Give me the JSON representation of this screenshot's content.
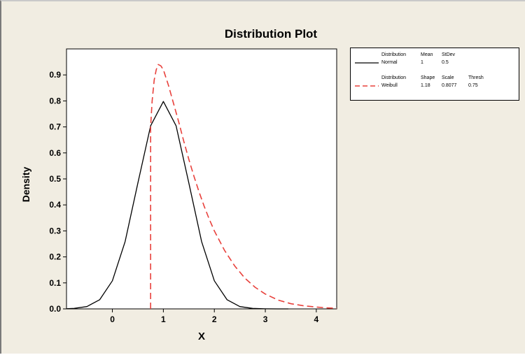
{
  "chart_data": {
    "type": "line",
    "title": "Distribution Plot",
    "xlabel": "X",
    "ylabel": "Density",
    "xlim": [
      -0.9,
      4.4
    ],
    "ylim": [
      0,
      1.0
    ],
    "x_ticks": [
      0,
      1,
      2,
      3,
      4
    ],
    "x_tick_labels": [
      "0",
      "1",
      "2",
      "3",
      "4"
    ],
    "y_ticks": [
      0.0,
      0.1,
      0.2,
      0.3,
      0.4,
      0.5,
      0.6,
      0.7,
      0.8,
      0.9
    ],
    "y_tick_labels": [
      "0.0",
      "0.1",
      "0.2",
      "0.3",
      "0.4",
      "0.5",
      "0.6",
      "0.7",
      "0.8",
      "0.9"
    ],
    "grid": false,
    "legend_position": "top-right, outside plot",
    "series": [
      {
        "name": "Normal",
        "color": "#000000",
        "line_style": "solid",
        "x": [
          -0.9,
          -0.75,
          -0.5,
          -0.25,
          0,
          0.25,
          0.5,
          0.75,
          1,
          1.25,
          1.5,
          1.75,
          2,
          2.25,
          2.5,
          2.75,
          3,
          3.25,
          3.45
        ],
        "y": [
          0.0006,
          0.0019,
          0.0089,
          0.035,
          0.108,
          0.259,
          0.484,
          0.704,
          0.798,
          0.704,
          0.484,
          0.259,
          0.108,
          0.035,
          0.0089,
          0.0018,
          0.0003,
          0.0,
          0.0
        ]
      },
      {
        "name": "Weibull",
        "color": "#e8413c",
        "line_style": "dashed",
        "x": [
          0.75,
          0.75,
          0.78,
          0.82,
          0.86,
          0.9,
          0.95,
          1.0,
          1.1,
          1.2,
          1.3,
          1.4,
          1.5,
          1.6,
          1.7,
          1.8,
          1.9,
          2.0,
          2.2,
          2.4,
          2.6,
          2.8,
          3.0,
          3.25,
          3.5,
          3.75,
          4.0,
          4.2,
          4.4
        ],
        "y": [
          0.0,
          0.7,
          0.8,
          0.88,
          0.92,
          0.94,
          0.935,
          0.92,
          0.86,
          0.79,
          0.72,
          0.645,
          0.575,
          0.51,
          0.45,
          0.395,
          0.345,
          0.3,
          0.225,
          0.165,
          0.118,
          0.083,
          0.057,
          0.034,
          0.02,
          0.012,
          0.007,
          0.004,
          0.002
        ]
      }
    ],
    "legend": {
      "normal_header": [
        "Distribution",
        "Mean",
        "StDev"
      ],
      "normal_row": [
        "Normal",
        "1",
        "0.5"
      ],
      "weibull_header": [
        "Distribution",
        "Shape",
        "Scale",
        "Thresh"
      ],
      "weibull_row": [
        "Weibull",
        "1.18",
        "0.8077",
        "0.75"
      ]
    }
  }
}
